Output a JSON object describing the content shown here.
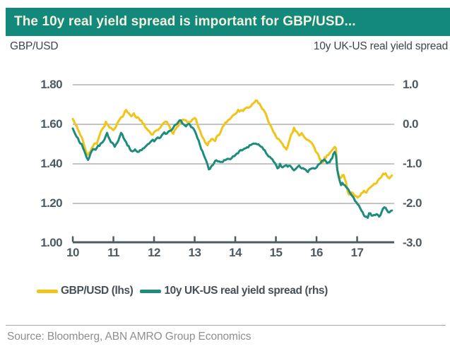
{
  "title": "The 10y real yield spread is important for GBP/USD...",
  "axis_captions": {
    "left": "GBP/USD",
    "right": "10y UK-US real yield spread"
  },
  "source": "Source: Bloomberg, ABN AMRO Group Economics",
  "colors": {
    "title_bar_bg": "#13897B",
    "title_text": "#F5F1DF",
    "gbpusd_line": "#F0C419",
    "spread_line": "#1E8C7D",
    "gridline": "#B0B0B0",
    "axis": "#4E5A62",
    "source_text": "#8F8F8F"
  },
  "legend": [
    {
      "label": "GBP/USD (lhs)",
      "color": "#F0C419"
    },
    {
      "label": "10y UK-US real yield spread (rhs)",
      "color": "#1E8C7D"
    }
  ],
  "chart_data": {
    "type": "line",
    "title": "The 10y real yield spread is important for GBP/USD...",
    "grid": true,
    "legend_position": "bottom",
    "x_axis": {
      "unit": "year (20xx)",
      "range": [
        10,
        17.9
      ],
      "ticks": [
        {
          "label": "10",
          "value": 10
        },
        {
          "label": "11",
          "value": 11
        },
        {
          "label": "12",
          "value": 12
        },
        {
          "label": "13",
          "value": 13
        },
        {
          "label": "14",
          "value": 14
        },
        {
          "label": "15",
          "value": 15
        },
        {
          "label": "16",
          "value": 16
        },
        {
          "label": "17",
          "value": 17
        }
      ]
    },
    "left_axis": {
      "name": "GBP/USD",
      "range": [
        1.0,
        1.8
      ],
      "ticks": [
        {
          "label": "1.80",
          "value": 1.8
        },
        {
          "label": "1.60",
          "value": 1.6
        },
        {
          "label": "1.40",
          "value": 1.4
        },
        {
          "label": "1.20",
          "value": 1.2
        },
        {
          "label": "1.00",
          "value": 1.0
        }
      ]
    },
    "right_axis": {
      "name": "10y UK-US real yield spread",
      "range": [
        -3.0,
        1.0
      ],
      "ticks": [
        {
          "label": "1.0",
          "value": 1.0
        },
        {
          "label": "0.0",
          "value": 0.0
        },
        {
          "label": "-1.0",
          "value": -1.0
        },
        {
          "label": "-2.0",
          "value": -2.0
        },
        {
          "label": "-3.0",
          "value": -3.0
        }
      ]
    },
    "series": [
      {
        "name": "GBP/USD (lhs)",
        "axis": "left",
        "color": "#F0C419",
        "points": [
          [
            10.0,
            1.63
          ],
          [
            10.04,
            1.612
          ],
          [
            10.1,
            1.592
          ],
          [
            10.17,
            1.56
          ],
          [
            10.24,
            1.522
          ],
          [
            10.31,
            1.47
          ],
          [
            10.37,
            1.44
          ],
          [
            10.43,
            1.462
          ],
          [
            10.5,
            1.492
          ],
          [
            10.55,
            1.507
          ],
          [
            10.6,
            1.498
          ],
          [
            10.66,
            1.54
          ],
          [
            10.72,
            1.57
          ],
          [
            10.78,
            1.588
          ],
          [
            10.82,
            1.618
          ],
          [
            10.86,
            1.592
          ],
          [
            10.92,
            1.578
          ],
          [
            11.0,
            1.562
          ],
          [
            11.05,
            1.578
          ],
          [
            11.11,
            1.612
          ],
          [
            11.18,
            1.628
          ],
          [
            11.25,
            1.648
          ],
          [
            11.3,
            1.67
          ],
          [
            11.36,
            1.652
          ],
          [
            11.43,
            1.64
          ],
          [
            11.5,
            1.655
          ],
          [
            11.57,
            1.642
          ],
          [
            11.64,
            1.628
          ],
          [
            11.72,
            1.608
          ],
          [
            11.8,
            1.582
          ],
          [
            11.88,
            1.565
          ],
          [
            11.95,
            1.552
          ],
          [
            12.02,
            1.56
          ],
          [
            12.09,
            1.572
          ],
          [
            12.16,
            1.585
          ],
          [
            12.23,
            1.598
          ],
          [
            12.3,
            1.612
          ],
          [
            12.37,
            1.592
          ],
          [
            12.43,
            1.568
          ],
          [
            12.46,
            1.552
          ],
          [
            12.52,
            1.572
          ],
          [
            12.58,
            1.592
          ],
          [
            12.64,
            1.608
          ],
          [
            12.71,
            1.632
          ],
          [
            12.78,
            1.618
          ],
          [
            12.85,
            1.612
          ],
          [
            12.92,
            1.622
          ],
          [
            13.0,
            1.63
          ],
          [
            13.06,
            1.602
          ],
          [
            13.12,
            1.568
          ],
          [
            13.19,
            1.535
          ],
          [
            13.26,
            1.505
          ],
          [
            13.32,
            1.498
          ],
          [
            13.38,
            1.518
          ],
          [
            13.44,
            1.53
          ],
          [
            13.5,
            1.512
          ],
          [
            13.56,
            1.535
          ],
          [
            13.63,
            1.558
          ],
          [
            13.71,
            1.595
          ],
          [
            13.79,
            1.61
          ],
          [
            13.86,
            1.622
          ],
          [
            13.93,
            1.642
          ],
          [
            14.01,
            1.655
          ],
          [
            14.08,
            1.668
          ],
          [
            14.15,
            1.66
          ],
          [
            14.22,
            1.672
          ],
          [
            14.3,
            1.685
          ],
          [
            14.38,
            1.698
          ],
          [
            14.45,
            1.712
          ],
          [
            14.5,
            1.718
          ],
          [
            14.56,
            1.708
          ],
          [
            14.62,
            1.692
          ],
          [
            14.69,
            1.672
          ],
          [
            14.76,
            1.645
          ],
          [
            14.83,
            1.612
          ],
          [
            14.9,
            1.582
          ],
          [
            14.96,
            1.56
          ],
          [
            15.02,
            1.535
          ],
          [
            15.08,
            1.515
          ],
          [
            15.15,
            1.498
          ],
          [
            15.22,
            1.478
          ],
          [
            15.27,
            1.47
          ],
          [
            15.33,
            1.512
          ],
          [
            15.4,
            1.556
          ],
          [
            15.45,
            1.58
          ],
          [
            15.51,
            1.562
          ],
          [
            15.57,
            1.548
          ],
          [
            15.63,
            1.556
          ],
          [
            15.7,
            1.54
          ],
          [
            15.77,
            1.527
          ],
          [
            15.84,
            1.515
          ],
          [
            15.91,
            1.503
          ],
          [
            15.97,
            1.478
          ],
          [
            16.04,
            1.45
          ],
          [
            16.1,
            1.42
          ],
          [
            16.14,
            1.402
          ],
          [
            16.2,
            1.43
          ],
          [
            16.27,
            1.438
          ],
          [
            16.34,
            1.45
          ],
          [
            16.4,
            1.463
          ],
          [
            16.45,
            1.48
          ],
          [
            16.48,
            1.47
          ],
          [
            16.5,
            1.385
          ],
          [
            16.53,
            1.352
          ],
          [
            16.57,
            1.338
          ],
          [
            16.61,
            1.33
          ],
          [
            16.65,
            1.35
          ],
          [
            16.69,
            1.325
          ],
          [
            16.73,
            1.302
          ],
          [
            16.77,
            1.262
          ],
          [
            16.81,
            1.248
          ],
          [
            16.85,
            1.268
          ],
          [
            16.9,
            1.258
          ],
          [
            16.96,
            1.246
          ],
          [
            17.01,
            1.235
          ],
          [
            17.06,
            1.225
          ],
          [
            17.11,
            1.248
          ],
          [
            17.17,
            1.262
          ],
          [
            17.23,
            1.252
          ],
          [
            17.29,
            1.28
          ],
          [
            17.36,
            1.294
          ],
          [
            17.43,
            1.3
          ],
          [
            17.5,
            1.312
          ],
          [
            17.57,
            1.332
          ],
          [
            17.63,
            1.348
          ],
          [
            17.68,
            1.358
          ],
          [
            17.74,
            1.344
          ],
          [
            17.8,
            1.33
          ],
          [
            17.87,
            1.34
          ]
        ]
      },
      {
        "name": "10y UK-US real yield spread (rhs)",
        "axis": "right",
        "color": "#1E8C7D",
        "points": [
          [
            10.0,
            -0.12
          ],
          [
            10.06,
            -0.22
          ],
          [
            10.12,
            -0.34
          ],
          [
            10.19,
            -0.46
          ],
          [
            10.25,
            -0.56
          ],
          [
            10.31,
            -0.7
          ],
          [
            10.37,
            -0.88
          ],
          [
            10.43,
            -0.74
          ],
          [
            10.49,
            -0.58
          ],
          [
            10.55,
            -0.66
          ],
          [
            10.61,
            -0.58
          ],
          [
            10.68,
            -0.5
          ],
          [
            10.74,
            -0.44
          ],
          [
            10.8,
            -0.32
          ],
          [
            10.85,
            -0.18
          ],
          [
            10.91,
            -0.36
          ],
          [
            10.97,
            -0.46
          ],
          [
            11.03,
            -0.56
          ],
          [
            11.1,
            -0.5
          ],
          [
            11.16,
            -0.3
          ],
          [
            11.21,
            -0.24
          ],
          [
            11.27,
            -0.42
          ],
          [
            11.34,
            -0.52
          ],
          [
            11.41,
            -0.62
          ],
          [
            11.48,
            -0.68
          ],
          [
            11.54,
            -0.62
          ],
          [
            11.61,
            -0.68
          ],
          [
            11.68,
            -0.63
          ],
          [
            11.75,
            -0.6
          ],
          [
            11.82,
            -0.55
          ],
          [
            11.89,
            -0.5
          ],
          [
            11.96,
            -0.44
          ],
          [
            12.02,
            -0.4
          ],
          [
            12.07,
            -0.3
          ],
          [
            12.13,
            -0.38
          ],
          [
            12.19,
            -0.3
          ],
          [
            12.25,
            -0.23
          ],
          [
            12.31,
            -0.28
          ],
          [
            12.38,
            -0.17
          ],
          [
            12.44,
            -0.1
          ],
          [
            12.5,
            -0.03
          ],
          [
            12.56,
            0.05
          ],
          [
            12.62,
            0.1
          ],
          [
            12.66,
            0.13
          ],
          [
            12.72,
            0.02
          ],
          [
            12.78,
            -0.06
          ],
          [
            12.84,
            -0.01
          ],
          [
            12.91,
            -0.07
          ],
          [
            12.97,
            -0.1
          ],
          [
            13.03,
            -0.2
          ],
          [
            13.08,
            -0.35
          ],
          [
            13.14,
            -0.52
          ],
          [
            13.2,
            -0.7
          ],
          [
            13.26,
            -0.88
          ],
          [
            13.31,
            -1.02
          ],
          [
            13.36,
            -1.15
          ],
          [
            13.42,
            -1.03
          ],
          [
            13.48,
            -0.96
          ],
          [
            13.54,
            -0.86
          ],
          [
            13.6,
            -0.92
          ],
          [
            13.67,
            -0.96
          ],
          [
            13.74,
            -0.9
          ],
          [
            13.81,
            -0.86
          ],
          [
            13.88,
            -0.84
          ],
          [
            13.95,
            -0.8
          ],
          [
            14.02,
            -0.76
          ],
          [
            14.1,
            -0.7
          ],
          [
            14.18,
            -0.64
          ],
          [
            14.26,
            -0.59
          ],
          [
            14.34,
            -0.54
          ],
          [
            14.42,
            -0.49
          ],
          [
            14.5,
            -0.44
          ],
          [
            14.58,
            -0.5
          ],
          [
            14.66,
            -0.57
          ],
          [
            14.74,
            -0.66
          ],
          [
            14.82,
            -0.76
          ],
          [
            14.9,
            -0.86
          ],
          [
            14.97,
            -0.94
          ],
          [
            15.04,
            -1.12
          ],
          [
            15.1,
            -1.02
          ],
          [
            15.17,
            -1.08
          ],
          [
            15.24,
            -1.0
          ],
          [
            15.31,
            -1.06
          ],
          [
            15.38,
            -1.1
          ],
          [
            15.45,
            -1.14
          ],
          [
            15.52,
            -1.08
          ],
          [
            15.59,
            -1.04
          ],
          [
            15.66,
            -1.1
          ],
          [
            15.73,
            -1.15
          ],
          [
            15.8,
            -1.2
          ],
          [
            15.87,
            -1.15
          ],
          [
            15.94,
            -1.11
          ],
          [
            16.01,
            -1.05
          ],
          [
            16.08,
            -0.99
          ],
          [
            16.15,
            -0.9
          ],
          [
            16.22,
            -0.86
          ],
          [
            16.28,
            -0.96
          ],
          [
            16.34,
            -0.9
          ],
          [
            16.4,
            -0.8
          ],
          [
            16.44,
            -0.72
          ],
          [
            16.47,
            -0.65
          ],
          [
            16.5,
            -1.05
          ],
          [
            16.53,
            -1.3
          ],
          [
            16.57,
            -1.44
          ],
          [
            16.61,
            -1.56
          ],
          [
            16.65,
            -1.46
          ],
          [
            16.69,
            -1.52
          ],
          [
            16.74,
            -1.56
          ],
          [
            16.79,
            -1.62
          ],
          [
            16.84,
            -1.74
          ],
          [
            16.89,
            -1.84
          ],
          [
            16.94,
            -1.94
          ],
          [
            17.0,
            -2.02
          ],
          [
            17.06,
            -2.12
          ],
          [
            17.12,
            -2.2
          ],
          [
            17.18,
            -2.3
          ],
          [
            17.25,
            -2.38
          ],
          [
            17.31,
            -2.28
          ],
          [
            17.37,
            -2.33
          ],
          [
            17.44,
            -2.3
          ],
          [
            17.5,
            -2.26
          ],
          [
            17.56,
            -2.29
          ],
          [
            17.62,
            -2.18
          ],
          [
            17.68,
            -2.08
          ],
          [
            17.74,
            -2.2
          ],
          [
            17.8,
            -2.22
          ],
          [
            17.87,
            -2.15
          ]
        ]
      }
    ]
  }
}
